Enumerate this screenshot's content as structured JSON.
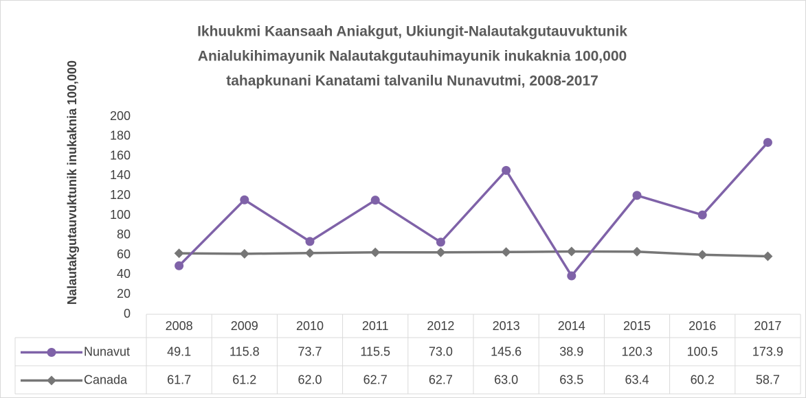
{
  "chart_data": {
    "type": "line",
    "title": [
      "Ikhuukmi Kaansaah Aniakgut, Ukiungit-Nalautakgutauvuktunik",
      "Anialukihimayunik Nalautakgutauhimayunik inukaknia 100,000",
      "tahapkunani Kanatami talvanilu Nunavutmi, 2008-2017"
    ],
    "y_label": "Nalautakgutauvuktunik inukaknia 100,000",
    "categories": [
      "2008",
      "2009",
      "2010",
      "2011",
      "2012",
      "2013",
      "2014",
      "2015",
      "2016",
      "2017"
    ],
    "series": [
      {
        "name": "Nunavut",
        "color": "#7f62a8",
        "marker": "circle",
        "values": [
          49.1,
          115.8,
          73.7,
          115.5,
          73.0,
          145.6,
          38.9,
          120.3,
          100.5,
          173.9
        ],
        "value_labels": [
          "49.1",
          "115.8",
          "73.7",
          "115.5",
          "73.0",
          "145.6",
          "38.9",
          "120.3",
          "100.5",
          "173.9"
        ]
      },
      {
        "name": "Canada",
        "color": "#767676",
        "marker": "diamond",
        "values": [
          61.7,
          61.2,
          62.0,
          62.7,
          62.7,
          63.0,
          63.5,
          63.4,
          60.2,
          58.7
        ],
        "value_labels": [
          "61.7",
          "61.2",
          "62.0",
          "62.7",
          "62.7",
          "63.0",
          "63.5",
          "63.4",
          "60.2",
          "58.7"
        ]
      }
    ],
    "ylim": [
      0,
      200
    ],
    "yticks": [
      0,
      20,
      40,
      60,
      80,
      100,
      120,
      140,
      160,
      180,
      200
    ],
    "grid": false
  }
}
